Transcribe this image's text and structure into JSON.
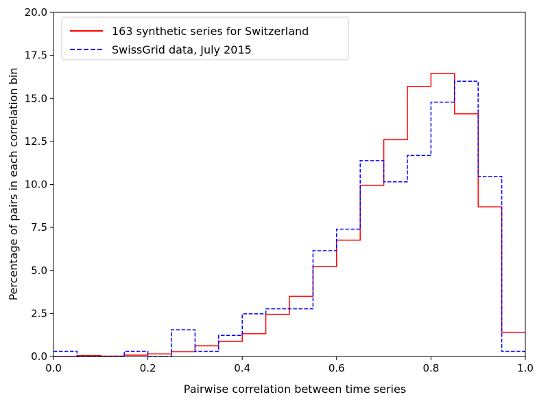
{
  "chart_data": {
    "type": "histogram-step",
    "xlabel": "Pairwise correlation between time series",
    "ylabel": "Percentage of pairs in each correlation bin",
    "xlim": [
      0.0,
      1.0
    ],
    "ylim": [
      0.0,
      20.0
    ],
    "x_ticks": [
      "0.0",
      "0.2",
      "0.4",
      "0.6",
      "0.8",
      "1.0"
    ],
    "y_ticks": [
      "0.0",
      "2.5",
      "5.0",
      "7.5",
      "10.0",
      "12.5",
      "15.0",
      "17.5",
      "20.0"
    ],
    "bin_edges": [
      0.0,
      0.05,
      0.1,
      0.15,
      0.2,
      0.25,
      0.3,
      0.35,
      0.4,
      0.45,
      0.5,
      0.55,
      0.6,
      0.65,
      0.7,
      0.75,
      0.8,
      0.85,
      0.9,
      0.95,
      1.0
    ],
    "legend_position": "upper-left",
    "series": [
      {
        "name": "163 synthetic series for Switzerland",
        "color": "#ff0000",
        "style": "solid",
        "values": [
          0.0,
          0.05,
          0.02,
          0.08,
          0.15,
          0.28,
          0.62,
          0.88,
          1.32,
          2.45,
          3.5,
          5.23,
          6.76,
          9.95,
          12.6,
          15.7,
          16.45,
          14.1,
          8.7,
          1.4
        ]
      },
      {
        "name": "SwissGrid data, July 2015",
        "color": "#0000ff",
        "style": "dashed",
        "values": [
          0.3,
          0.0,
          0.0,
          0.3,
          0.0,
          1.55,
          0.3,
          1.23,
          2.48,
          2.77,
          2.77,
          6.15,
          7.4,
          11.38,
          10.15,
          11.68,
          14.78,
          16.0,
          10.47,
          0.3
        ]
      }
    ]
  }
}
